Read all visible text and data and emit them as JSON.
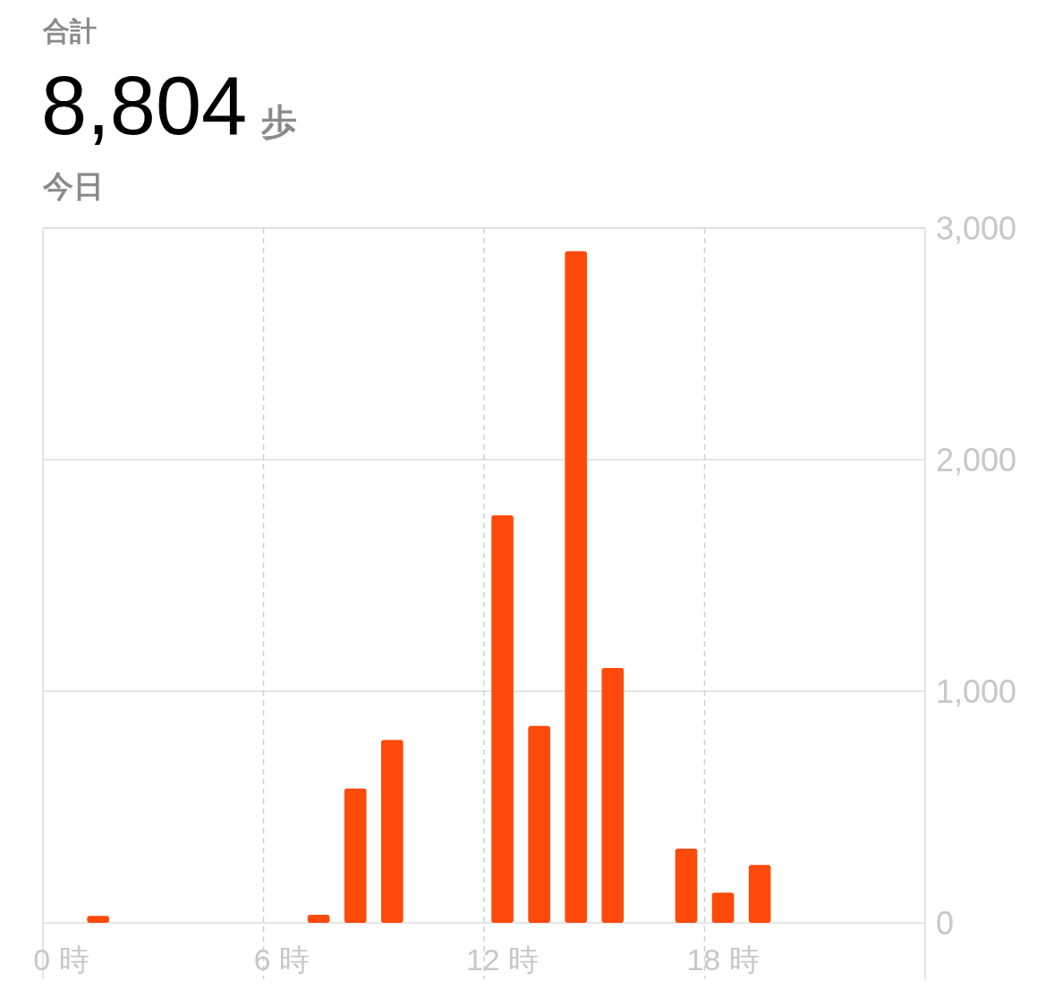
{
  "chart_data": {
    "type": "bar",
    "title": "8,804 歩",
    "subtitle": "今日",
    "annotations": [
      "合計"
    ],
    "categories": [
      "0 時",
      null,
      null,
      null,
      null,
      null,
      "6 時",
      null,
      null,
      null,
      null,
      null,
      "12 時",
      null,
      null,
      null,
      null,
      null,
      "18 時",
      null,
      null,
      null,
      null,
      null
    ],
    "values": [
      null,
      30,
      null,
      null,
      null,
      null,
      null,
      35,
      580,
      790,
      null,
      null,
      1760,
      850,
      2900,
      1100,
      null,
      320,
      130,
      250,
      null,
      null,
      null,
      null
    ],
    "color": "#fe4a0a",
    "ylim": [
      0,
      3000
    ],
    "yticks": [
      {
        "value": 0,
        "label": "0"
      },
      {
        "value": 1000,
        "label": "1,000"
      },
      {
        "value": 2000,
        "label": "2,000"
      },
      {
        "value": 3000,
        "label": "3,000"
      }
    ],
    "grid": true
  }
}
